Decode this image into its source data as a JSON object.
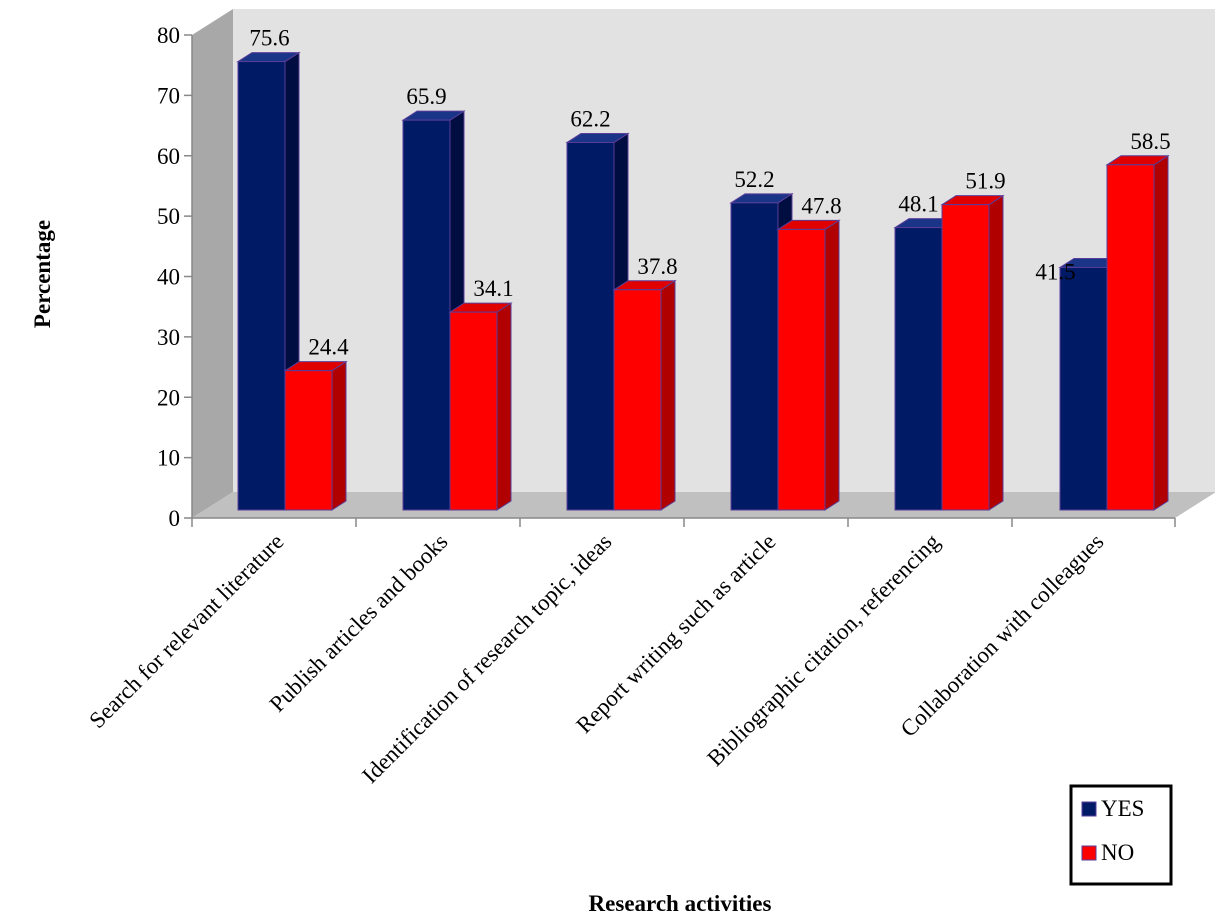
{
  "chart_data": {
    "type": "bar",
    "title": "",
    "xlabel": "Research activities",
    "ylabel": "Percentage",
    "ylim": [
      0,
      80
    ],
    "yticks": [
      "0",
      "10",
      "20",
      "30",
      "40",
      "50",
      "60",
      "70",
      "80"
    ],
    "categories": [
      "Search for relevant literature",
      "Publish articles and books",
      "Identification of research topic, ideas",
      "Report writing such as article",
      "Bibliographic citation, referencing",
      "Collaboration with colleagues"
    ],
    "series": [
      {
        "name": "YES",
        "values": [
          75.6,
          65.9,
          62.2,
          52.2,
          48.1,
          41.5
        ],
        "labels": [
          "75.6",
          "65.9",
          "62.2",
          "52.2",
          "48.1",
          "41.5"
        ]
      },
      {
        "name": "NO",
        "values": [
          24.4,
          34.1,
          37.8,
          47.8,
          51.9,
          58.5
        ],
        "labels": [
          "24.4",
          "34.1",
          "37.8",
          "47.8",
          "51.9",
          "58.5"
        ]
      }
    ],
    "legend": "bottom-right",
    "grid": false,
    "colors": {
      "YES": {
        "front": "#001a66",
        "side": "#000d40",
        "top": "#1a3488"
      },
      "NO": {
        "front": "#ff0000",
        "side": "#b00000",
        "top": "#e00000"
      },
      "back_wall": "#e2e2e2",
      "side_wall": "#a8a8a8",
      "floor": "#c0c0c0",
      "bar_stroke": "#5a3d99"
    }
  }
}
